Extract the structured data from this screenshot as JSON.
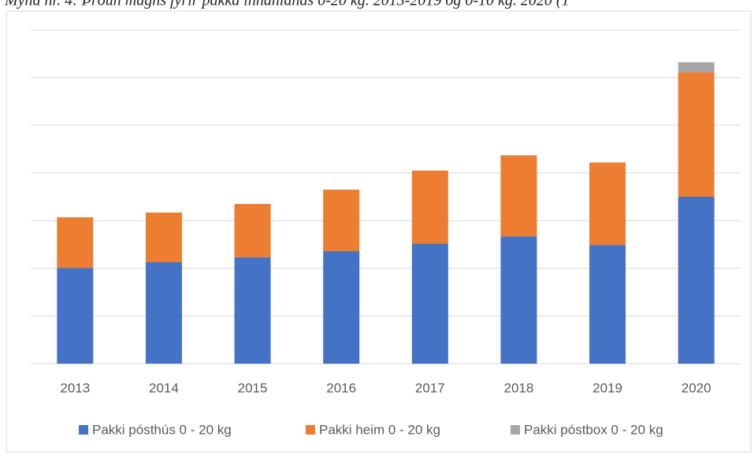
{
  "chart_data": {
    "type": "bar",
    "stacked": true,
    "title": "Mynd nr. 4: Þróun magns fyrir pakka innanlands 0-20 kg. 2013-2019 og 0-10 kg. 2020 (1",
    "categories": [
      "2013",
      "2014",
      "2015",
      "2016",
      "2017",
      "2018",
      "2019",
      "2020"
    ],
    "series": [
      {
        "name": "Pakki pósthús  0 - 20 kg",
        "color": "#4472c4",
        "values": [
          2.01,
          2.13,
          2.23,
          2.36,
          2.52,
          2.67,
          2.49,
          3.5
        ]
      },
      {
        "name": "Pakki heim  0 - 20 kg",
        "color": "#ed7d31",
        "values": [
          1.06,
          1.04,
          1.12,
          1.29,
          1.53,
          1.7,
          1.73,
          2.61
        ]
      },
      {
        "name": "Pakki póstbox 0 - 20 kg",
        "color": "#a5a5a5",
        "values": [
          0,
          0,
          0,
          0,
          0,
          0,
          0,
          0.21
        ]
      }
    ],
    "ylim": [
      0,
      7
    ],
    "yticks": [
      0,
      1,
      2,
      3,
      4,
      5,
      6,
      7
    ],
    "grid": true,
    "legend": "bottom"
  }
}
